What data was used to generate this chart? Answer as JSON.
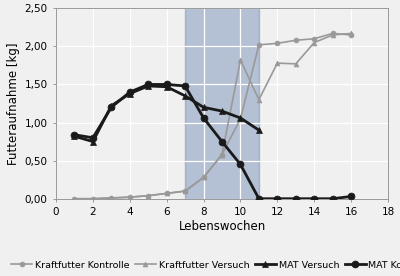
{
  "xlabel": "Lebenswochen",
  "ylabel": "Futteraufnahme [kg]",
  "xlim": [
    0,
    18
  ],
  "ylim": [
    0,
    2.5
  ],
  "xticks": [
    0,
    2,
    4,
    6,
    8,
    10,
    12,
    14,
    16,
    18
  ],
  "yticks": [
    0.0,
    0.5,
    1.0,
    1.5,
    2.0,
    2.5
  ],
  "ytick_labels": [
    "0,00",
    "0,50",
    "1,00",
    "1,50",
    "2,00",
    "2,50"
  ],
  "shade_x_start": 7,
  "shade_x_end": 11,
  "shade_color": "#5a7aab",
  "shade_alpha": 0.4,
  "series": [
    {
      "label": "Kraftfutter Kontrolle",
      "color": "#999999",
      "linewidth": 1.2,
      "marker": "o",
      "markersize": 3.5,
      "linestyle": "-",
      "x": [
        1,
        2,
        3,
        4,
        5,
        6,
        7,
        8,
        9,
        10,
        11,
        12,
        13,
        14,
        15,
        16
      ],
      "y": [
        0.0,
        0.0,
        0.01,
        0.02,
        0.04,
        0.07,
        0.1,
        0.28,
        0.58,
        1.05,
        2.02,
        2.04,
        2.08,
        2.1,
        2.17,
        2.15
      ]
    },
    {
      "label": "Kraftfutter Versuch",
      "color": "#999999",
      "linewidth": 1.2,
      "marker": "^",
      "markersize": 3.5,
      "linestyle": "-",
      "x": [
        1,
        2,
        3,
        4,
        5,
        6,
        7,
        8,
        9,
        10,
        11,
        12,
        13,
        14,
        15,
        16
      ],
      "y": [
        0.0,
        0.0,
        0.01,
        0.02,
        0.04,
        0.07,
        0.1,
        0.28,
        0.58,
        1.82,
        1.3,
        1.78,
        1.77,
        2.05,
        2.15,
        2.17
      ]
    },
    {
      "label": "MAT Versuch",
      "color": "#1a1a1a",
      "linewidth": 2.0,
      "marker": "^",
      "markersize": 5,
      "linestyle": "-",
      "x": [
        1,
        2,
        3,
        4,
        5,
        6,
        7,
        8,
        9,
        10,
        11
      ],
      "y": [
        0.82,
        0.75,
        1.22,
        1.38,
        1.48,
        1.47,
        1.35,
        1.2,
        1.15,
        1.06,
        0.9
      ]
    },
    {
      "label": "MAT Kontrolle",
      "color": "#1a1a1a",
      "linewidth": 2.0,
      "marker": "o",
      "markersize": 5,
      "linestyle": "-",
      "x": [
        1,
        2,
        3,
        4,
        5,
        6,
        7,
        8,
        9,
        10,
        11,
        12,
        13,
        14,
        15,
        16
      ],
      "y": [
        0.84,
        0.8,
        1.2,
        1.4,
        1.5,
        1.5,
        1.48,
        1.06,
        0.75,
        0.45,
        0.0,
        0.0,
        0.0,
        0.0,
        0.0,
        0.03
      ]
    }
  ],
  "background_color": "#f0f0f0",
  "grid_color": "#ffffff",
  "legend_fontsize": 6.8,
  "tick_fontsize": 7.5,
  "label_fontsize": 8.5
}
